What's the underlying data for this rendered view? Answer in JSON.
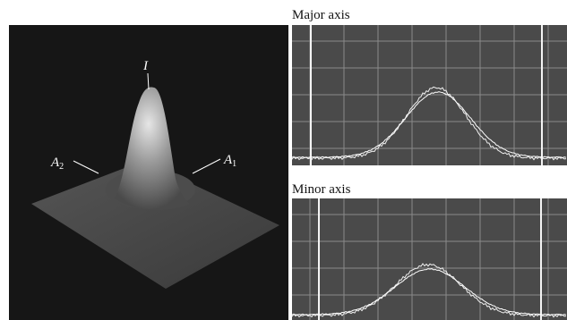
{
  "figure": {
    "surface": {
      "peak_label": "I",
      "left_label": {
        "base": "A",
        "sub": "2"
      },
      "right_label": {
        "base": "A",
        "sub": "1"
      }
    },
    "plots": [
      {
        "title": "Major axis"
      },
      {
        "title": "Minor axis"
      }
    ]
  }
}
